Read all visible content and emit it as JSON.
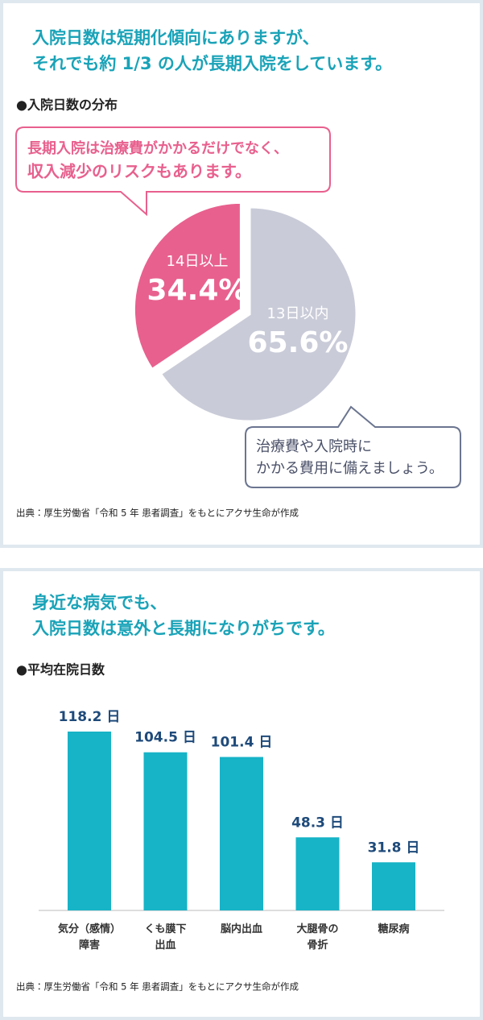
{
  "chart_data": [
    {
      "type": "pie",
      "title": [
        "入院日数は短期化傾向にありますが、",
        "それでも約 1/3 の人が長期入院をしています。"
      ],
      "subtitle": "●入院日数の分布",
      "categories": [
        "14日以上",
        "13日以内"
      ],
      "values": [
        34.4,
        65.6
      ],
      "value_labels": [
        "34.4%",
        "65.6%"
      ],
      "colors": [
        "#e8608e",
        "#c9cbd8"
      ],
      "annotations": [
        [
          "長期入院は治療費がかかるだけでなく、",
          "収入減少のリスクもあります。"
        ],
        [
          "治療費や入院時に",
          "かかる費用に備えましょう。"
        ]
      ],
      "source": "出典：厚生労働省「令和 5 年 患者調査」をもとにアクサ生命が作成"
    },
    {
      "type": "bar",
      "title": [
        "身近な病気でも、",
        "入院日数は意外と長期になりがちです。"
      ],
      "subtitle": "●平均在院日数",
      "categories": [
        "気分（感情）\n障害",
        "くも膜下\n出血",
        "脳内出血",
        "大腿骨の\n骨折",
        "糖尿病"
      ],
      "values": [
        118.2,
        104.5,
        101.4,
        48.3,
        31.8
      ],
      "value_labels": [
        "118.2 日",
        "104.5 日",
        "101.4 日",
        "48.3 日",
        "31.8 日"
      ],
      "color": "#17b3c6",
      "source": "出典：厚生労働省「令和 5 年 患者調査」をもとにアクサ生命が作成"
    }
  ]
}
